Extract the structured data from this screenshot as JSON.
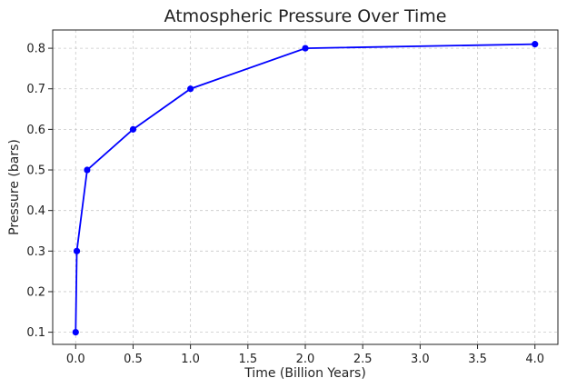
{
  "chart_data": {
    "type": "line",
    "title": "Atmospheric Pressure Over Time",
    "xlabel": "Time (Billion Years)",
    "ylabel": "Pressure (bars)",
    "xlim": [
      -0.2,
      4.2
    ],
    "ylim": [
      0.07,
      0.845
    ],
    "xticks": [
      0.0,
      0.5,
      1.0,
      1.5,
      2.0,
      2.5,
      3.0,
      3.5,
      4.0
    ],
    "xtick_labels": [
      "0.0",
      "0.5",
      "1.0",
      "1.5",
      "2.0",
      "2.5",
      "3.0",
      "3.5",
      "4.0"
    ],
    "yticks": [
      0.1,
      0.2,
      0.3,
      0.4,
      0.5,
      0.6,
      0.7,
      0.8
    ],
    "ytick_labels": [
      "0.1",
      "0.2",
      "0.3",
      "0.4",
      "0.5",
      "0.6",
      "0.7",
      "0.8"
    ],
    "grid": true,
    "series": [
      {
        "color": "#0000ff",
        "marker": "circle",
        "x": [
          0.0,
          0.01,
          0.1,
          0.5,
          1.0,
          2.0,
          4.0
        ],
        "y": [
          0.1,
          0.3,
          0.5,
          0.6,
          0.7,
          0.8,
          0.81
        ]
      }
    ]
  }
}
